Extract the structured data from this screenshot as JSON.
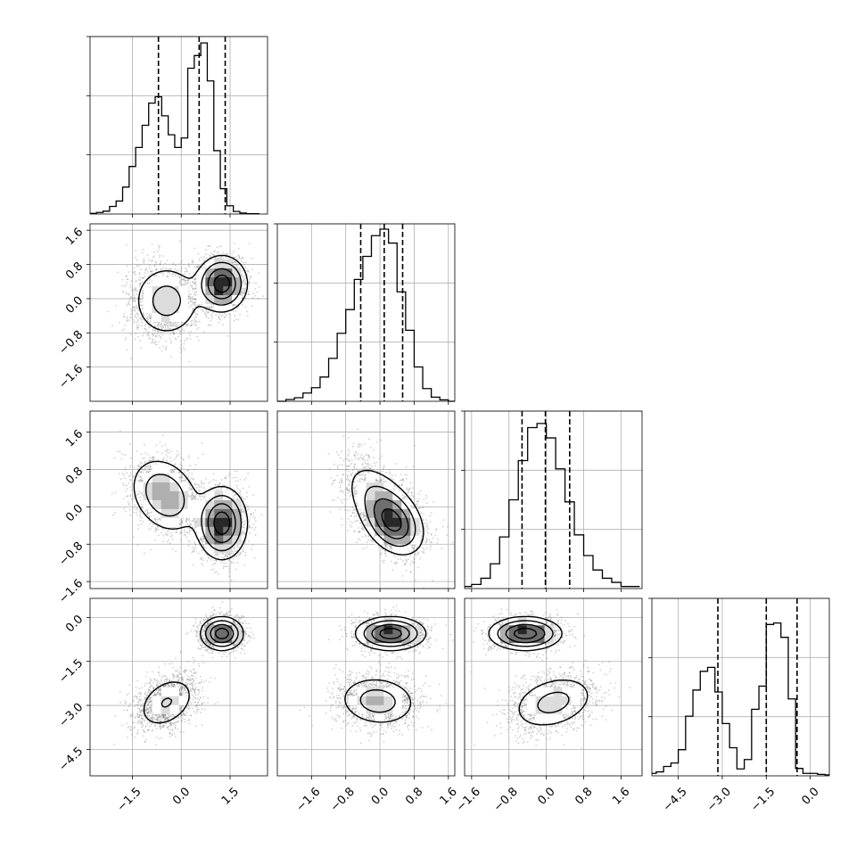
{
  "chart_data": {
    "type": "corner",
    "grid": true,
    "params": [
      {
        "range": [
          -2.8,
          2.65
        ],
        "ticks": [
          -1.5,
          0.0,
          1.5
        ],
        "tick_labels": [
          "−1.5",
          "0.0",
          "1.5"
        ],
        "quantiles": [
          -0.7,
          0.55,
          1.35
        ],
        "hist_bin_width": 0.2,
        "hist_values": [
          0.2,
          0.5,
          0.9,
          2.4,
          4.1,
          8.5,
          15,
          21,
          28,
          35,
          37,
          31,
          25,
          21,
          24,
          46,
          50,
          54,
          42,
          20,
          8,
          2.6,
          0.8,
          0.3,
          0.1,
          0.1
        ],
        "hist_ymax": 56
      },
      {
        "range": [
          -2.4,
          1.75
        ],
        "ticks": [
          -1.6,
          -0.8,
          0.0,
          0.8,
          1.6
        ],
        "tick_labels": [
          "−1.6",
          "−0.8",
          "0.0",
          "0.8",
          "1.6"
        ],
        "quantiles": [
          -0.45,
          0.1,
          0.53
        ],
        "hist_bin_width": 0.2,
        "hist_values": [
          0,
          0.6,
          1.2,
          2.8,
          4.6,
          8.2,
          14.5,
          23,
          31,
          41.2,
          49,
          56,
          58.2,
          53.5,
          37,
          24,
          11.6,
          4.3,
          1.4,
          0.5,
          0
        ],
        "hist_ymax": 60
      },
      {
        "range": [
          -1.75,
          2.05
        ],
        "ticks": [
          -1.6,
          -0.8,
          0.0,
          0.8,
          1.6
        ],
        "tick_labels": [
          "−1.6",
          "−0.8",
          "0.0",
          "0.8",
          "1.6"
        ],
        "quantiles": [
          -0.52,
          -0.02,
          0.5
        ],
        "hist_bin_width": 0.2,
        "hist_values": [
          1,
          2,
          5,
          12,
          25,
          43,
          62,
          78,
          80,
          73,
          58,
          42,
          26,
          16,
          9,
          5,
          3,
          1,
          1
        ],
        "hist_ymax": 86
      },
      {
        "range": [
          -5.4,
          0.65
        ],
        "ticks": [
          -4.5,
          -3.0,
          -1.5,
          0.0
        ],
        "tick_labels": [
          "−4.5",
          "−3.0",
          "−1.5",
          "0.0"
        ],
        "quantiles": [
          -3.15,
          -1.5,
          -0.45
        ],
        "hist_bin_width": 0.25,
        "hist_values": [
          0.5,
          0.8,
          1.9,
          2.6,
          5.3,
          12.1,
          17.4,
          21.2,
          22.0,
          17.0,
          10.6,
          5.7,
          1.4,
          3.3,
          13.5,
          18.2,
          30.7,
          31.0,
          28.1,
          15.6,
          1.5,
          0.5,
          0.5,
          0.3,
          0.2
        ],
        "hist_ymax": 36
      }
    ],
    "pairs": [
      {
        "x": 0,
        "y": 1,
        "spread": [
          0.95,
          0.6
        ],
        "components": [
          {
            "mean": [
              -0.45,
              -0.05
            ],
            "sd": [
              0.55,
              0.45
            ],
            "rho": 0.0,
            "weight": 0.45
          },
          {
            "mean": [
              1.25,
              0.35
            ],
            "sd": [
              0.38,
              0.32
            ],
            "rho": 0.0,
            "weight": 0.55
          }
        ]
      },
      {
        "x": 0,
        "y": 2,
        "spread": [
          0.95,
          0.65
        ],
        "components": [
          {
            "mean": [
              -0.5,
              0.25
            ],
            "sd": [
              0.55,
              0.42
            ],
            "rho": -0.25,
            "weight": 0.45
          },
          {
            "mean": [
              1.25,
              -0.35
            ],
            "sd": [
              0.38,
              0.38
            ],
            "rho": 0.0,
            "weight": 0.55
          }
        ]
      },
      {
        "x": 0,
        "y": 3,
        "spread": [
          0.95,
          1.3
        ],
        "components": [
          {
            "mean": [
              -0.45,
              -2.9
            ],
            "sd": [
              0.5,
              0.5
            ],
            "rho": 0.35,
            "weight": 0.45
          },
          {
            "mean": [
              1.25,
              -0.55
            ],
            "sd": [
              0.32,
              0.28
            ],
            "rho": 0.0,
            "weight": 0.55
          }
        ]
      },
      {
        "x": 1,
        "y": 2,
        "spread": [
          0.6,
          0.65
        ],
        "components": [
          {
            "mean": [
              0.1,
              0.0
            ],
            "sd": [
              0.48,
              0.5
            ],
            "rho": -0.55,
            "weight": 0.55
          },
          {
            "mean": [
              0.3,
              -0.35
            ],
            "sd": [
              0.32,
              0.32
            ],
            "rho": -0.3,
            "weight": 0.45
          }
        ]
      },
      {
        "x": 1,
        "y": 3,
        "spread": [
          0.6,
          1.3
        ],
        "components": [
          {
            "mean": [
              -0.05,
              -2.85
            ],
            "sd": [
              0.48,
              0.45
            ],
            "rho": -0.1,
            "weight": 0.45
          },
          {
            "mean": [
              0.25,
              -0.55
            ],
            "sd": [
              0.4,
              0.28
            ],
            "rho": 0.0,
            "weight": 0.55
          }
        ]
      },
      {
        "x": 2,
        "y": 3,
        "spread": [
          0.65,
          1.3
        ],
        "components": [
          {
            "mean": [
              0.15,
              -2.9
            ],
            "sd": [
              0.48,
              0.5
            ],
            "rho": 0.3,
            "weight": 0.45
          },
          {
            "mean": [
              -0.45,
              -0.55
            ],
            "sd": [
              0.38,
              0.28
            ],
            "rho": 0.0,
            "weight": 0.55
          }
        ]
      }
    ]
  }
}
